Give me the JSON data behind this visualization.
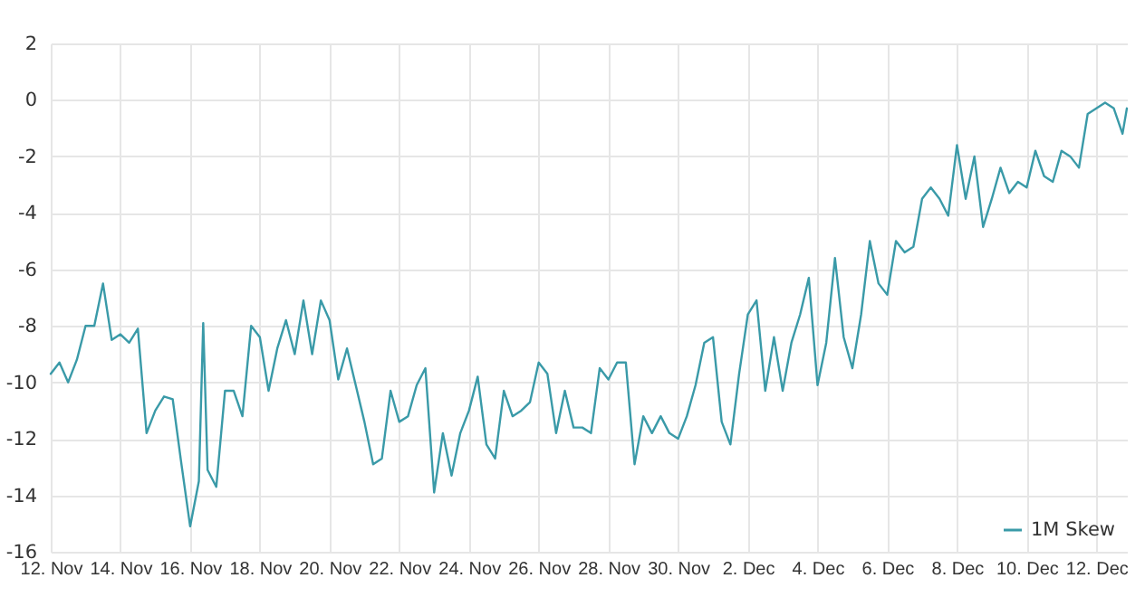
{
  "chart_data": {
    "type": "line",
    "x": [
      "--11-12T00:00",
      "--11-12T06:00",
      "--11-12T12:00",
      "--11-12T18:00",
      "--11-13T00:00",
      "--11-13T06:00",
      "--11-13T12:00",
      "--11-13T18:00",
      "--11-14T00:00",
      "--11-14T06:00",
      "--11-14T12:00",
      "--11-14T18:00",
      "--11-15T00:00",
      "--11-15T06:00",
      "--11-15T12:00",
      "--11-15T18:00",
      "--11-16T00:00",
      "--11-16T06:00",
      "--11-16T09:00",
      "--11-16T12:00",
      "--11-16T18:00",
      "--11-17T00:00",
      "--11-17T06:00",
      "--11-17T12:00",
      "--11-17T18:00",
      "--11-18T00:00",
      "--11-18T06:00",
      "--11-18T12:00",
      "--11-18T18:00",
      "--11-19T00:00",
      "--11-19T06:00",
      "--11-19T12:00",
      "--11-19T18:00",
      "--11-20T00:00",
      "--11-20T06:00",
      "--11-20T12:00",
      "--11-20T18:00",
      "--11-21T00:00",
      "--11-21T06:00",
      "--11-21T12:00",
      "--11-21T18:00",
      "--11-22T00:00",
      "--11-22T06:00",
      "--11-22T12:00",
      "--11-22T18:00",
      "--11-23T00:00",
      "--11-23T06:00",
      "--11-23T12:00",
      "--11-23T18:00",
      "--11-24T00:00",
      "--11-24T06:00",
      "--11-24T12:00",
      "--11-24T18:00",
      "--11-25T00:00",
      "--11-25T06:00",
      "--11-25T12:00",
      "--11-25T18:00",
      "--11-26T00:00",
      "--11-26T06:00",
      "--11-26T12:00",
      "--11-26T18:00",
      "--11-27T00:00",
      "--11-27T06:00",
      "--11-27T12:00",
      "--11-27T18:00",
      "--11-28T00:00",
      "--11-28T06:00",
      "--11-28T12:00",
      "--11-28T18:00",
      "--11-29T00:00",
      "--11-29T06:00",
      "--11-29T12:00",
      "--11-29T18:00",
      "--11-30T00:00",
      "--11-30T06:00",
      "--11-30T12:00",
      "--11-30T18:00",
      "--12-01T00:00",
      "--12-01T06:00",
      "--12-01T12:00",
      "--12-01T18:00",
      "--12-02T00:00",
      "--12-02T06:00",
      "--12-02T12:00",
      "--12-02T18:00",
      "--12-03T00:00",
      "--12-03T06:00",
      "--12-03T12:00",
      "--12-03T18:00",
      "--12-04T00:00",
      "--12-04T06:00",
      "--12-04T12:00",
      "--12-04T18:00",
      "--12-05T00:00",
      "--12-05T06:00",
      "--12-05T12:00",
      "--12-05T18:00",
      "--12-06T00:00",
      "--12-06T06:00",
      "--12-06T12:00",
      "--12-06T18:00",
      "--12-07T00:00",
      "--12-07T06:00",
      "--12-07T12:00",
      "--12-07T18:00",
      "--12-08T00:00",
      "--12-08T06:00",
      "--12-08T12:00",
      "--12-08T18:00",
      "--12-09T00:00",
      "--12-09T06:00",
      "--12-09T12:00",
      "--12-09T18:00",
      "--12-10T00:00",
      "--12-10T06:00",
      "--12-10T12:00",
      "--12-10T18:00",
      "--12-11T00:00",
      "--12-11T06:00",
      "--12-11T12:00",
      "--12-11T18:00",
      "--12-12T00:00",
      "--12-12T06:00",
      "--12-12T12:00",
      "--12-12T18:00",
      "--12-12T21:00"
    ],
    "series": [
      {
        "name": "1M Skew",
        "color": "#3a9aa8",
        "values": [
          -9.7,
          -9.3,
          -10.0,
          -9.2,
          -8.0,
          -8.0,
          -6.5,
          -8.5,
          -8.3,
          -8.6,
          -8.1,
          -11.8,
          -11.0,
          -10.5,
          -10.6,
          -12.9,
          -15.1,
          -13.5,
          -7.9,
          -13.1,
          -13.7,
          -10.3,
          -10.3,
          -11.2,
          -8.0,
          -8.4,
          -10.3,
          -8.8,
          -7.8,
          -9.0,
          -7.1,
          -9.0,
          -7.1,
          -7.8,
          -9.9,
          -8.8,
          -10.1,
          -11.4,
          -12.9,
          -12.7,
          -10.3,
          -11.4,
          -11.2,
          -10.1,
          -9.5,
          -13.9,
          -11.8,
          -13.3,
          -11.8,
          -11.0,
          -9.8,
          -12.2,
          -12.7,
          -10.3,
          -11.2,
          -11.0,
          -10.7,
          -9.3,
          -9.7,
          -11.8,
          -10.3,
          -11.6,
          -11.6,
          -11.8,
          -9.5,
          -9.9,
          -9.3,
          -9.3,
          -12.9,
          -11.2,
          -11.8,
          -11.2,
          -11.8,
          -12.0,
          -11.2,
          -10.1,
          -8.6,
          -8.4,
          -11.4,
          -12.2,
          -9.7,
          -7.6,
          -7.1,
          -10.3,
          -8.4,
          -10.3,
          -8.6,
          -7.6,
          -6.3,
          -10.1,
          -8.6,
          -5.6,
          -8.4,
          -9.5,
          -7.6,
          -5.0,
          -6.5,
          -6.9,
          -5.0,
          -5.4,
          -5.2,
          -3.5,
          -3.1,
          -3.5,
          -4.1,
          -1.6,
          -3.5,
          -2.0,
          -4.5,
          -3.5,
          -2.4,
          -3.3,
          -2.9,
          -3.1,
          -1.8,
          -2.7,
          -2.9,
          -1.8,
          -2.0,
          -2.4,
          -0.5,
          -0.3,
          -0.1,
          -0.3,
          -1.2,
          -0.3
        ]
      }
    ],
    "xlim": [
      "--11-12T00:00",
      "--12-12T21:00"
    ],
    "xticks": [
      {
        "value": "--11-12",
        "label": "12. Nov"
      },
      {
        "value": "--11-14",
        "label": "14. Nov"
      },
      {
        "value": "--11-16",
        "label": "16. Nov"
      },
      {
        "value": "--11-18",
        "label": "18. Nov"
      },
      {
        "value": "--11-20",
        "label": "20. Nov"
      },
      {
        "value": "--11-22",
        "label": "22. Nov"
      },
      {
        "value": "--11-24",
        "label": "24. Nov"
      },
      {
        "value": "--11-26",
        "label": "26. Nov"
      },
      {
        "value": "--11-28",
        "label": "28. Nov"
      },
      {
        "value": "--11-30",
        "label": "30. Nov"
      },
      {
        "value": "--12-02",
        "label": "2. Dec"
      },
      {
        "value": "--12-04",
        "label": "4. Dec"
      },
      {
        "value": "--12-06",
        "label": "6. Dec"
      },
      {
        "value": "--12-08",
        "label": "8. Dec"
      },
      {
        "value": "--12-10",
        "label": "10. Dec"
      },
      {
        "value": "--12-12",
        "label": "12. Dec"
      }
    ],
    "ylim": [
      -16,
      2
    ],
    "yticks": [
      -16,
      -14,
      -12,
      -10,
      -8,
      -6,
      -4,
      -2,
      0,
      2
    ],
    "grid": true,
    "legend": "bottom right"
  }
}
